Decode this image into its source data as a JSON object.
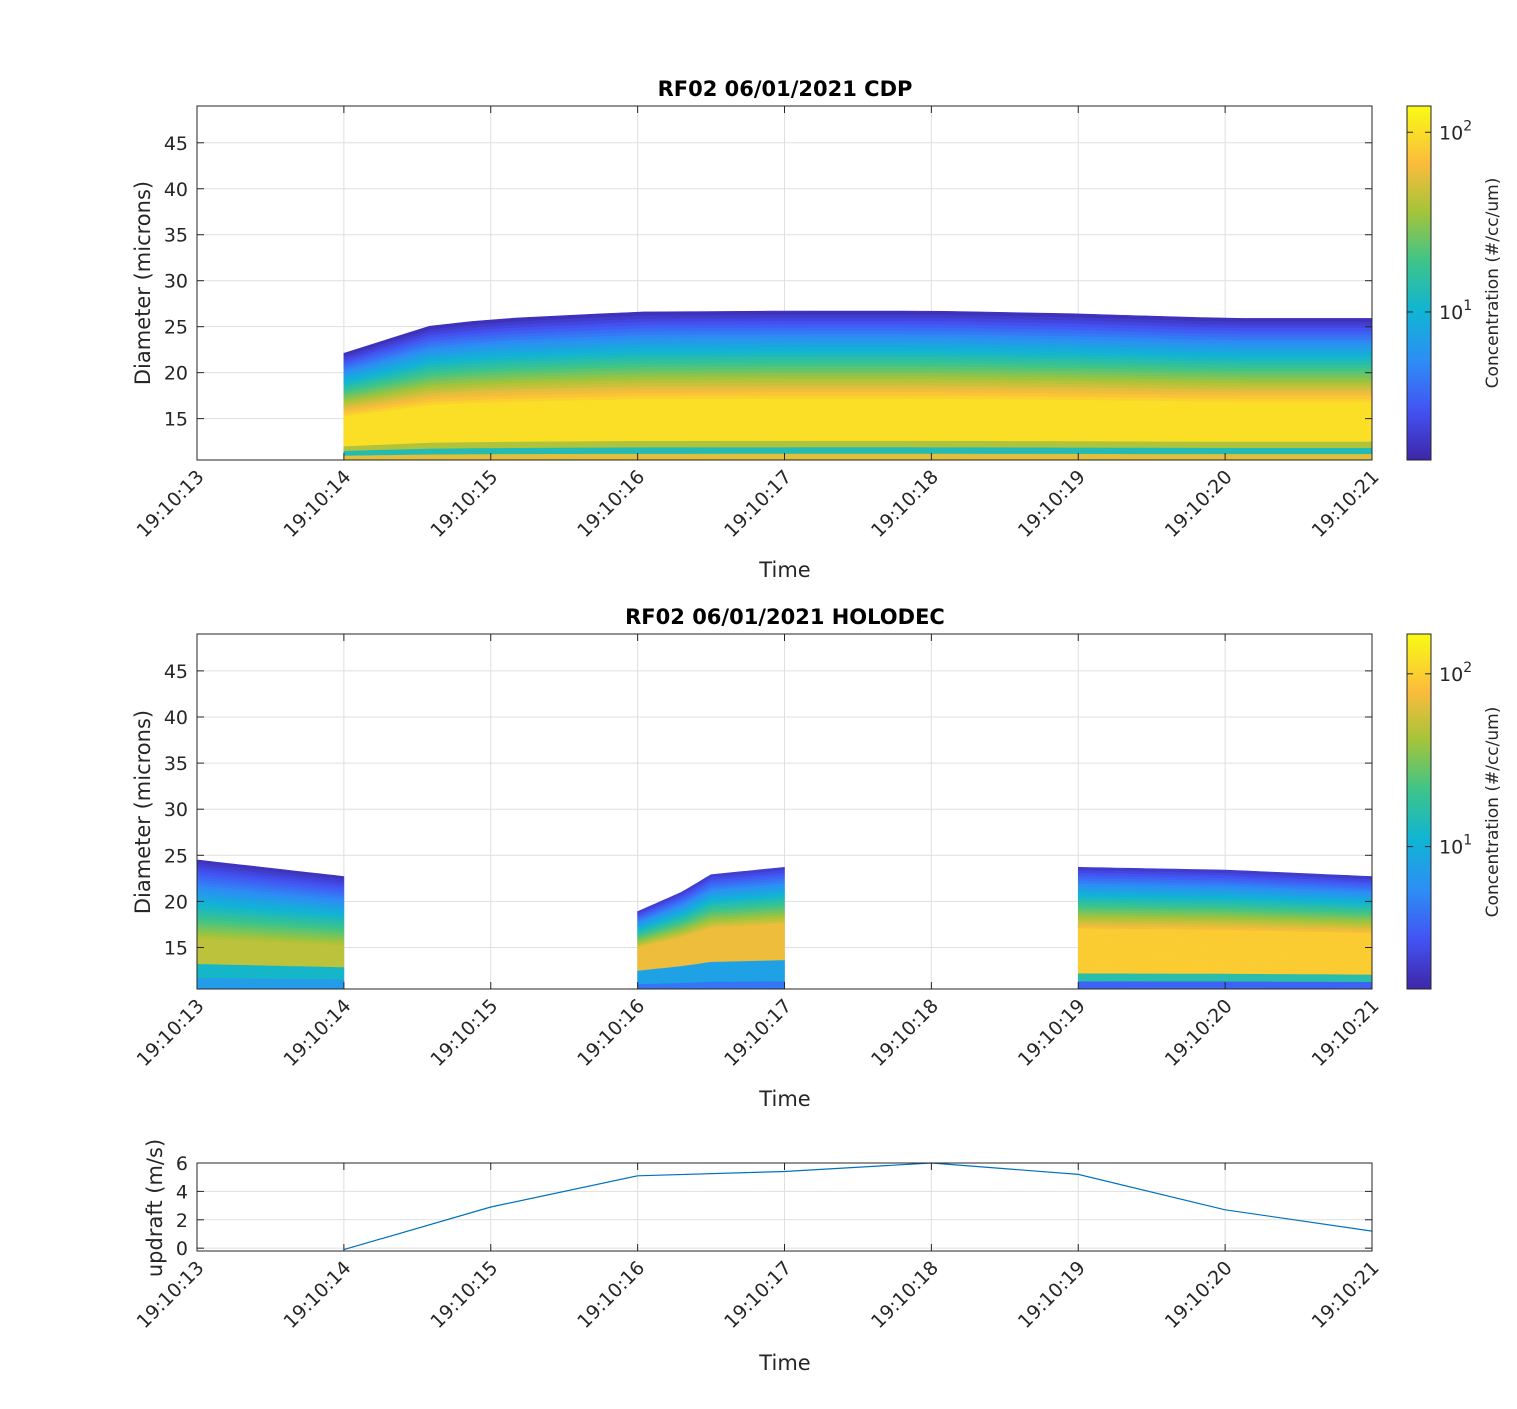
{
  "chart_data": [
    {
      "type": "heatmap",
      "title": "RF02 06/01/2021 CDP",
      "xlabel": "Time",
      "ylabel": "Diameter (microns)",
      "x_ticks": [
        "19:10:13",
        "19:10:14",
        "19:10:15",
        "19:10:16",
        "19:10:17",
        "19:10:18",
        "19:10:19",
        "19:10:20",
        "19:10:21"
      ],
      "y_ticks": [
        15,
        20,
        25,
        30,
        35,
        40,
        45
      ],
      "ylim": [
        10.5,
        49
      ],
      "grid": true,
      "colormap": "parula",
      "colorbar": {
        "label": "Concentration (#/cc/um)",
        "scale": "log",
        "range": [
          1.5,
          140
        ],
        "ticks": [
          {
            "value": 10,
            "label": "10",
            "exp": "1"
          },
          {
            "value": 100,
            "label": "10",
            "exp": "2"
          }
        ]
      },
      "x_seconds": [
        1,
        1.2,
        1.5,
        2,
        3,
        4,
        5,
        6,
        7,
        8
      ],
      "top_diameter": [
        22.1,
        23.0,
        24.9,
        25.8,
        26.6,
        26.7,
        26.7,
        26.4,
        25.9,
        25.9
      ],
      "segments": [
        [
          1,
          8
        ]
      ],
      "core_diameter": 13.8
    },
    {
      "type": "heatmap",
      "title": "RF02 06/01/2021 HOLODEC",
      "xlabel": "Time",
      "ylabel": "Diameter (microns)",
      "x_ticks": [
        "19:10:13",
        "19:10:14",
        "19:10:15",
        "19:10:16",
        "19:10:17",
        "19:10:18",
        "19:10:19",
        "19:10:20",
        "19:10:21"
      ],
      "y_ticks": [
        15,
        20,
        25,
        30,
        35,
        40,
        45
      ],
      "ylim": [
        10.5,
        49
      ],
      "grid": true,
      "colormap": "parula",
      "colorbar": {
        "label": "Concentration (#/cc/um)",
        "scale": "log",
        "range": [
          1.5,
          170
        ],
        "ticks": [
          {
            "value": 10,
            "label": "10",
            "exp": "1"
          },
          {
            "value": 100,
            "label": "10",
            "exp": "2"
          }
        ]
      },
      "segments": [
        {
          "x": [
            0,
            1
          ],
          "top": [
            24.5,
            22.7
          ],
          "core": 15.5
        },
        {
          "x": [
            3,
            3.3,
            3.5,
            4
          ],
          "top": [
            18.9,
            21.0,
            22.9,
            23.7
          ],
          "core": 16.0
        },
        {
          "x": [
            6,
            7,
            8
          ],
          "top": [
            23.7,
            23.4,
            22.7
          ],
          "core": 15.5
        }
      ]
    },
    {
      "type": "line",
      "ylabel": "updraft (m/s)",
      "xlabel": "Time",
      "x_ticks": [
        "19:10:13",
        "19:10:14",
        "19:10:15",
        "19:10:16",
        "19:10:17",
        "19:10:18",
        "19:10:19",
        "19:10:20",
        "19:10:21"
      ],
      "y_ticks": [
        0,
        2,
        4,
        6
      ],
      "ylim": [
        -0.2,
        6
      ],
      "grid": true,
      "x": [
        1,
        2,
        3,
        4,
        5,
        6,
        7,
        8
      ],
      "y": [
        -0.1,
        2.9,
        5.1,
        5.4,
        6.0,
        5.2,
        2.7,
        1.2
      ],
      "color": "#0072bd"
    }
  ]
}
